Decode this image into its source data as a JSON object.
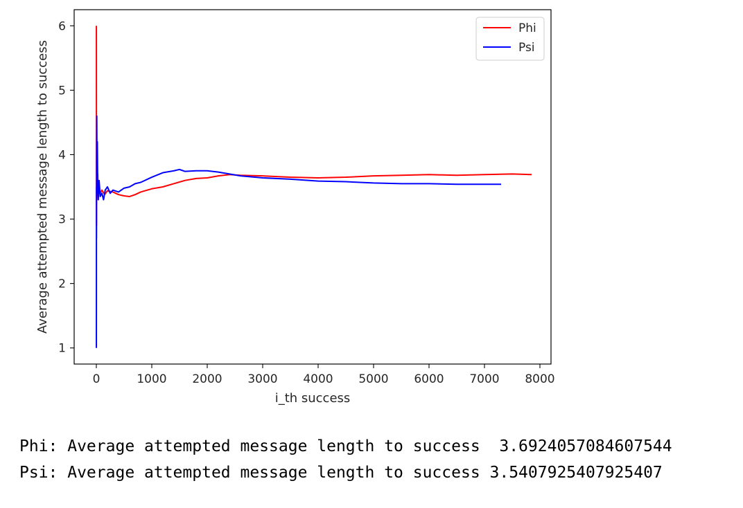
{
  "chart_data": {
    "type": "line",
    "title": "",
    "xlabel": "i_th success",
    "ylabel": "Average attempted message length to success",
    "xlim": [
      -400,
      8200
    ],
    "ylim": [
      0.75,
      6.25
    ],
    "xticks": [
      0,
      1000,
      2000,
      3000,
      4000,
      5000,
      6000,
      7000,
      8000
    ],
    "xtick_labels": [
      "0",
      "1000",
      "2000",
      "3000",
      "4000",
      "5000",
      "6000",
      "7000",
      "8000"
    ],
    "yticks": [
      1,
      2,
      3,
      4,
      5,
      6
    ],
    "ytick_labels": [
      "1",
      "2",
      "3",
      "4",
      "5",
      "6"
    ],
    "grid": false,
    "legend_position": "top-right",
    "series": [
      {
        "name": "Phi",
        "color": "#ff0000",
        "x": [
          1,
          2,
          3,
          5,
          8,
          12,
          18,
          25,
          35,
          50,
          70,
          100,
          150,
          200,
          300,
          400,
          500,
          600,
          700,
          800,
          1000,
          1200,
          1400,
          1600,
          1800,
          2000,
          2200,
          2400,
          2600,
          3000,
          3500,
          4000,
          4500,
          5000,
          5500,
          6000,
          6500,
          7000,
          7500,
          7850
        ],
        "y": [
          6.0,
          3.2,
          2.9,
          4.0,
          3.3,
          3.9,
          3.4,
          3.7,
          3.35,
          3.5,
          3.4,
          3.45,
          3.38,
          3.44,
          3.42,
          3.38,
          3.36,
          3.35,
          3.38,
          3.42,
          3.47,
          3.5,
          3.55,
          3.6,
          3.63,
          3.64,
          3.67,
          3.69,
          3.68,
          3.67,
          3.65,
          3.64,
          3.65,
          3.67,
          3.68,
          3.69,
          3.68,
          3.69,
          3.7,
          3.69
        ]
      },
      {
        "name": "Psi",
        "color": "#0000ff",
        "x": [
          1,
          2,
          3,
          5,
          8,
          12,
          18,
          25,
          35,
          50,
          70,
          100,
          130,
          160,
          200,
          250,
          300,
          400,
          500,
          600,
          700,
          800,
          1000,
          1200,
          1400,
          1500,
          1600,
          1800,
          2000,
          2200,
          2400,
          2600,
          3000,
          3500,
          4000,
          4500,
          5000,
          5500,
          6000,
          6500,
          7000,
          7300
        ],
        "y": [
          1.0,
          3.5,
          2.7,
          4.0,
          4.6,
          3.7,
          4.2,
          3.5,
          3.3,
          3.6,
          3.35,
          3.4,
          3.3,
          3.45,
          3.5,
          3.4,
          3.45,
          3.42,
          3.48,
          3.5,
          3.55,
          3.57,
          3.65,
          3.72,
          3.75,
          3.77,
          3.74,
          3.75,
          3.75,
          3.73,
          3.7,
          3.67,
          3.64,
          3.62,
          3.59,
          3.58,
          3.56,
          3.55,
          3.55,
          3.54,
          3.54,
          3.54
        ]
      }
    ]
  },
  "output": {
    "line1": "Phi: Average attempted message length to success  3.6924057084607544",
    "line2": "Psi: Average attempted message length to success 3.5407925407925407"
  }
}
